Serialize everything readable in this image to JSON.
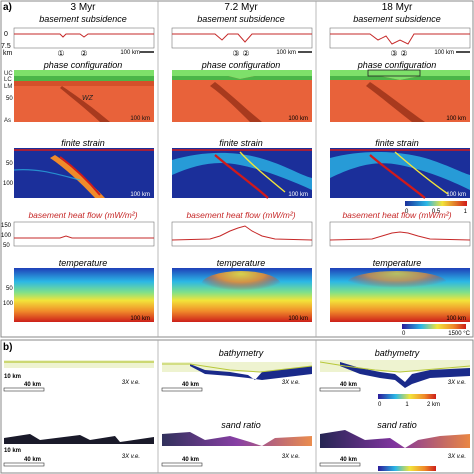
{
  "panel_a": {
    "label": "a)",
    "times": [
      "3 Myr",
      "7.2 Myr",
      "18 Myr"
    ],
    "rows": {
      "subsidence": "basement subsidence",
      "phase": "phase configuration",
      "strain": "finite strain",
      "heatflow": "basement heat flow (mW/m²)",
      "temperature": "temperature"
    },
    "scale_100km": "100 km",
    "subsidence_axis": [
      "0",
      "7.5",
      "km"
    ],
    "depth_axis": [
      "0",
      "50",
      "100",
      "km"
    ],
    "heatflow_axis": [
      "150",
      "100",
      "50"
    ],
    "layer_labels": [
      "UC",
      "LC",
      "LM",
      "As"
    ],
    "weak_zone": "WZ",
    "markers_col1": [
      "①",
      "②"
    ],
    "markers_col2": [
      "③",
      "②"
    ],
    "markers_col3": [
      "③",
      "②"
    ],
    "strain_scale": [
      "0",
      "0.5",
      "1"
    ],
    "temp_scale": [
      "0",
      "1500 °C"
    ]
  },
  "panel_b": {
    "label": "b)",
    "rows": {
      "bathymetry": "bathymetry",
      "sand": "sand ratio"
    },
    "scale_40km": "40 km",
    "depth_10km": "10 km",
    "ve": "3X v.e.",
    "bathy_scale": [
      "0",
      "1",
      "2 km"
    ],
    "partial_label": "3"
  },
  "colors": {
    "asthenosphere": "#e8623a",
    "upper_crust": "#7ee06a",
    "lower_crust": "#4bb548",
    "temp_hot": "#cc1f1a",
    "strain_bg": "#1b2f9a",
    "curve_red": "#c62828"
  }
}
